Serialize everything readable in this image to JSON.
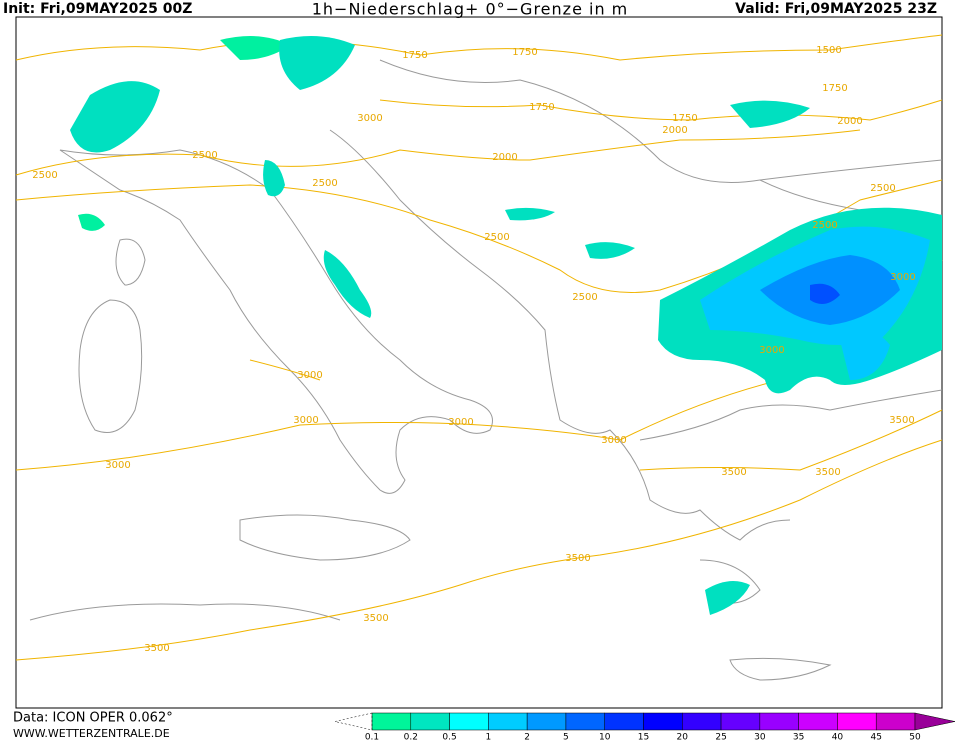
{
  "header": {
    "init": "Init: Fri,09MAY2025 00Z",
    "title": "1h−Niederschlag+ 0°−Grenze in m",
    "valid": "Valid: Fri,09MAY2025 23Z"
  },
  "footer": {
    "data": "Data: ICON OPER 0.062°",
    "site": "WWW.WETTERZENTRALE.DE"
  },
  "legend": {
    "labels": [
      "0.1",
      "0.2",
      "0.5",
      "1",
      "2",
      "5",
      "10",
      "15",
      "20",
      "25",
      "30",
      "35",
      "40",
      "45",
      "50"
    ],
    "colors": [
      "#00f59a",
      "#00e6c0",
      "#00ffff",
      "#00ccff",
      "#0099ff",
      "#0066ff",
      "#0033ff",
      "#0000ff",
      "#3300ff",
      "#6600ff",
      "#9900ff",
      "#cc00ff",
      "#ff00ff",
      "#cc00cc",
      "#990099"
    ]
  },
  "contour_labels": [
    "1750",
    "1750",
    "1750",
    "1750",
    "1500",
    "1750",
    "2000",
    "2000",
    "2000",
    "3000",
    "2500",
    "2500",
    "2500",
    "2500",
    "2500",
    "2500",
    "3000",
    "3000",
    "3000",
    "3000",
    "3000",
    "3000",
    "3500",
    "3500",
    "3500",
    "3500",
    "3500",
    "3500",
    "2500",
    "3000"
  ]
}
